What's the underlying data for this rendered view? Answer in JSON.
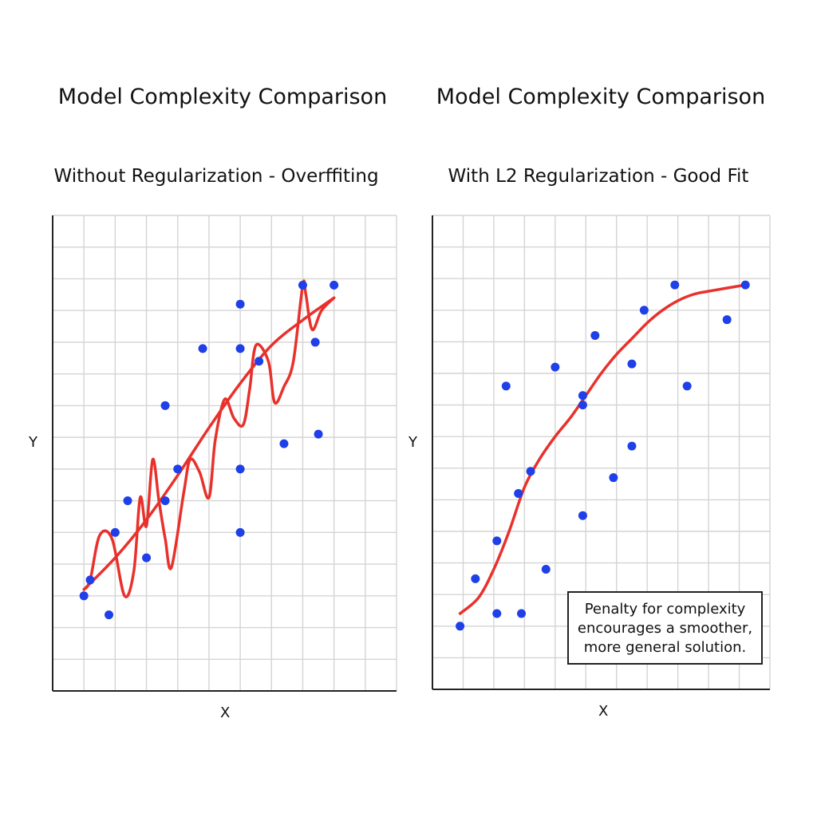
{
  "chart_data": [
    {
      "type": "scatter",
      "title": "Model Complexity Comparison",
      "subtitle": "Without Regularization - Overffiting",
      "xlabel": "X",
      "ylabel": "Y",
      "xlim": [
        0,
        11
      ],
      "ylim": [
        0,
        15
      ],
      "grid": true,
      "series": [
        {
          "kind": "points",
          "color": "#1f3fe8",
          "points": [
            [
              1.0,
              3.0
            ],
            [
              1.2,
              3.5
            ],
            [
              1.8,
              2.4
            ],
            [
              2.0,
              5.0
            ],
            [
              2.4,
              6.0
            ],
            [
              3.0,
              4.2
            ],
            [
              3.6,
              6.0
            ],
            [
              3.6,
              9.0
            ],
            [
              4.0,
              7.0
            ],
            [
              4.8,
              10.8
            ],
            [
              6.0,
              7.0
            ],
            [
              6.0,
              5.0
            ],
            [
              6.0,
              10.8
            ],
            [
              6.0,
              12.2
            ],
            [
              6.6,
              10.4
            ],
            [
              7.4,
              7.8
            ],
            [
              8.0,
              12.8
            ],
            [
              8.4,
              11.0
            ],
            [
              8.5,
              8.1
            ],
            [
              9.0,
              12.8
            ]
          ]
        },
        {
          "kind": "curve",
          "color": "#e8312c",
          "description": "smooth trend",
          "points": [
            [
              1.0,
              3.2
            ],
            [
              2.0,
              4.2
            ],
            [
              3.0,
              5.4
            ],
            [
              4.0,
              6.8
            ],
            [
              5.0,
              8.3
            ],
            [
              6.0,
              9.7
            ],
            [
              7.0,
              10.9
            ],
            [
              8.0,
              11.7
            ],
            [
              9.0,
              12.4
            ]
          ]
        },
        {
          "kind": "curve",
          "color": "#e8312c",
          "description": "overfit wiggly fit",
          "points": [
            [
              1.0,
              3.2
            ],
            [
              1.2,
              3.5
            ],
            [
              1.5,
              4.9
            ],
            [
              1.9,
              4.8
            ],
            [
              2.3,
              3.0
            ],
            [
              2.6,
              3.8
            ],
            [
              2.8,
              6.1
            ],
            [
              3.0,
              5.2
            ],
            [
              3.2,
              7.3
            ],
            [
              3.4,
              6.0
            ],
            [
              3.6,
              4.8
            ],
            [
              3.8,
              3.9
            ],
            [
              4.2,
              6.3
            ],
            [
              4.4,
              7.3
            ],
            [
              4.7,
              6.9
            ],
            [
              5.0,
              6.1
            ],
            [
              5.2,
              7.9
            ],
            [
              5.5,
              9.2
            ],
            [
              5.8,
              8.6
            ],
            [
              6.1,
              8.4
            ],
            [
              6.3,
              9.5
            ],
            [
              6.5,
              10.9
            ],
            [
              6.9,
              10.4
            ],
            [
              7.1,
              9.1
            ],
            [
              7.4,
              9.6
            ],
            [
              7.7,
              10.4
            ],
            [
              8.0,
              12.8
            ],
            [
              8.1,
              12.5
            ],
            [
              8.3,
              11.4
            ],
            [
              8.6,
              12.0
            ],
            [
              9.0,
              12.4
            ]
          ]
        }
      ]
    },
    {
      "type": "scatter",
      "title": "Model Complexity Comparison",
      "subtitle": "With L2 Regularization - Good Fit",
      "xlabel": "X",
      "ylabel": "Y",
      "xlim": [
        0,
        11
      ],
      "ylim": [
        0,
        15
      ],
      "grid": true,
      "annotation": {
        "lines": [
          "Penalty for complexity",
          "encourages a smoother,",
          "more general solution."
        ],
        "placement": "bottom-right"
      },
      "series": [
        {
          "kind": "points",
          "color": "#1f3fe8",
          "points": [
            [
              0.9,
              2.0
            ],
            [
              1.4,
              3.5
            ],
            [
              2.1,
              2.4
            ],
            [
              2.1,
              4.7
            ],
            [
              2.4,
              9.6
            ],
            [
              2.8,
              6.2
            ],
            [
              2.9,
              2.4
            ],
            [
              3.2,
              6.9
            ],
            [
              3.7,
              3.8
            ],
            [
              4.0,
              10.2
            ],
            [
              4.9,
              5.5
            ],
            [
              4.9,
              9.0
            ],
            [
              4.9,
              9.3
            ],
            [
              5.3,
              11.2
            ],
            [
              5.9,
              6.7
            ],
            [
              6.5,
              7.7
            ],
            [
              6.5,
              10.3
            ],
            [
              6.9,
              12.0
            ],
            [
              7.9,
              12.8
            ],
            [
              8.3,
              9.6
            ],
            [
              9.6,
              11.7
            ],
            [
              10.2,
              12.8
            ]
          ]
        },
        {
          "kind": "curve",
          "color": "#e8312c",
          "description": "regularized fit",
          "points": [
            [
              0.9,
              2.4
            ],
            [
              1.5,
              2.9
            ],
            [
              2.0,
              3.8
            ],
            [
              2.5,
              5.0
            ],
            [
              3.0,
              6.4
            ],
            [
              3.5,
              7.3
            ],
            [
              4.0,
              8.0
            ],
            [
              4.5,
              8.6
            ],
            [
              5.0,
              9.3
            ],
            [
              5.5,
              10.0
            ],
            [
              6.0,
              10.6
            ],
            [
              6.5,
              11.1
            ],
            [
              7.0,
              11.6
            ],
            [
              7.5,
              12.0
            ],
            [
              8.0,
              12.3
            ],
            [
              8.5,
              12.5
            ],
            [
              9.0,
              12.6
            ],
            [
              10.2,
              12.8
            ]
          ]
        }
      ]
    }
  ]
}
